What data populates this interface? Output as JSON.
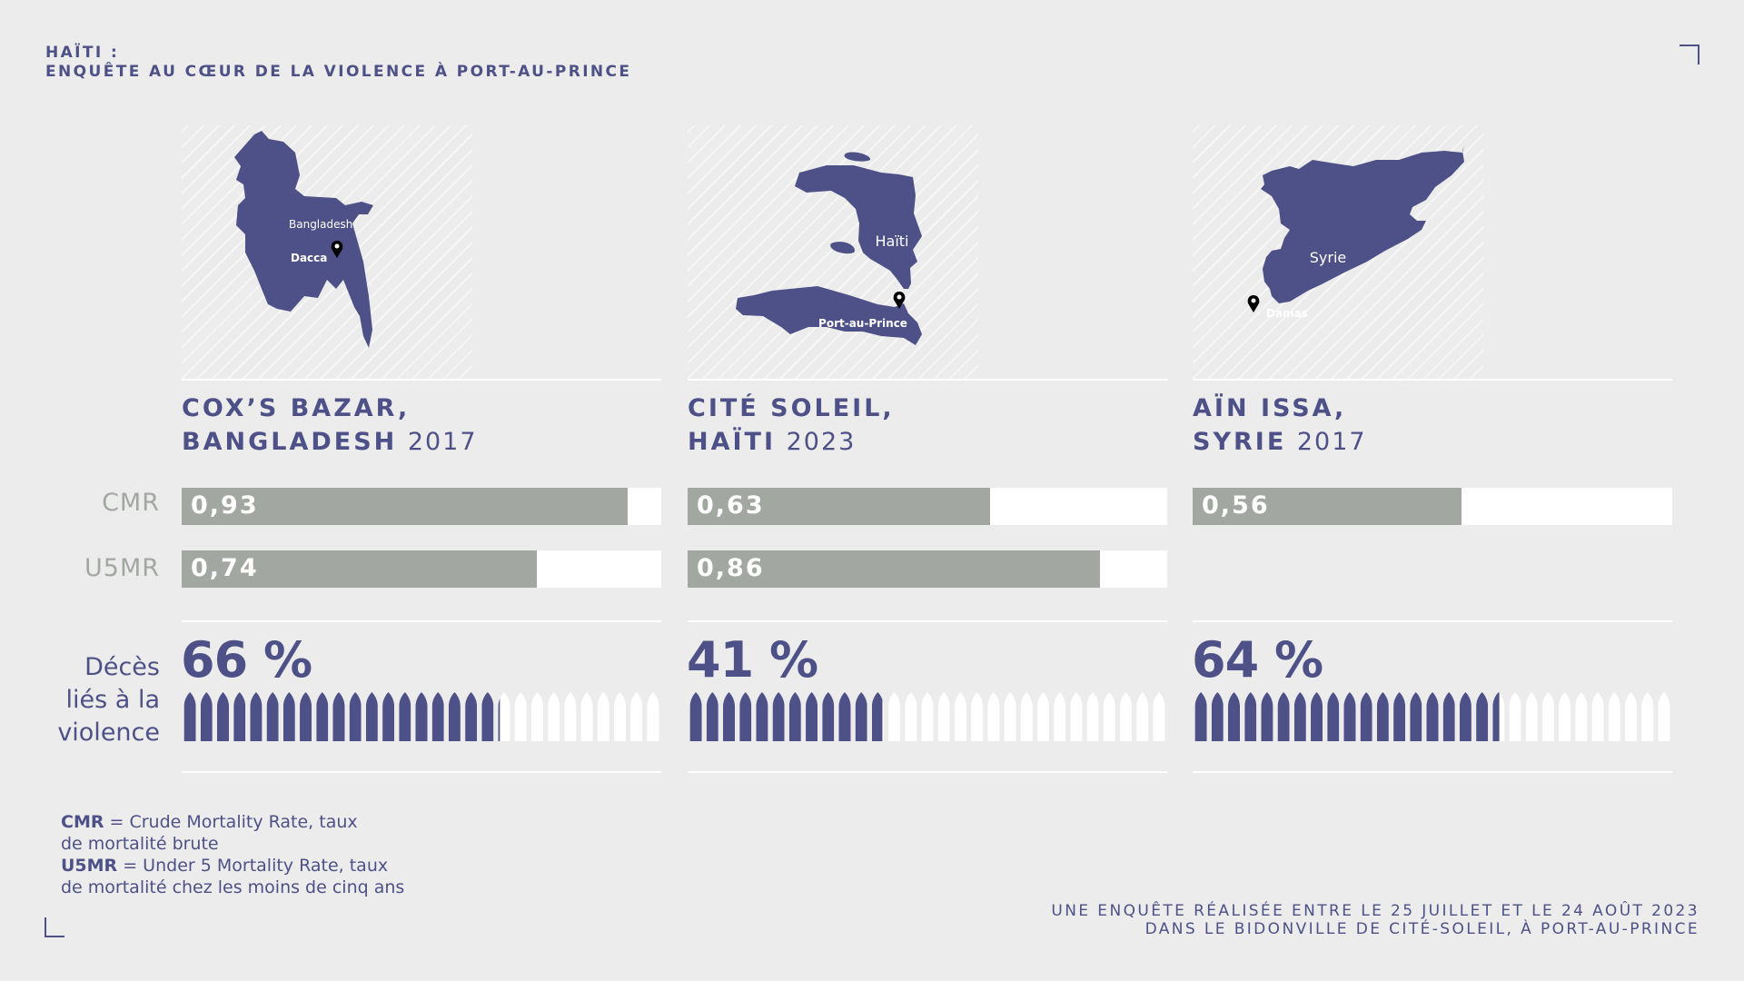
{
  "header": {
    "line1": "HAÏTI :",
    "line2": "ENQUÊTE AU CŒUR DE LA VIOLENCE À PORT-AU-PRINCE"
  },
  "row_labels": {
    "cmr": "CMR",
    "u5mr": "U5MR",
    "deces": [
      "Décès",
      "liés à la",
      "violence"
    ]
  },
  "columns": [
    {
      "line1": "COX’S BAZAR,",
      "line2_name": "BANGLADESH",
      "year": "2017",
      "country_label": "Bangladesh",
      "city_label": "Dacca"
    },
    {
      "line1": "CITÉ SOLEIL,",
      "line2_name": "HAÏTI",
      "year": "2023",
      "country_label": "Haïti",
      "city_label": "Port-au-Prince"
    },
    {
      "line1": "AÏN ISSA,",
      "line2_name": "SYRIE",
      "year": "2017",
      "country_label": "Syrie",
      "city_label": "Damas"
    }
  ],
  "legend": {
    "cmr_abbr": "CMR",
    "cmr_def": " = Crude Mortality Rate, taux",
    "cmr_def2": "de mortalité brute",
    "u5mr_abbr": "U5MR",
    "u5mr_def": " =  Under 5 Mortality Rate, taux",
    "u5mr_def2": "de mortalité chez les moins de cinq ans"
  },
  "footer": {
    "line1": "UNE ENQUÊTE RÉALISÉE ENTRE LE 25 JUILLET ET LE 24 AOÛT 2023",
    "line2": "DANS LE BIDONVILLE DE CITÉ-SOLEIL, À PORT-AU-PRINCE"
  },
  "colors": {
    "primary": "#4d5187",
    "bar": "#a2a8a1",
    "track": "#ffffff",
    "background": "#ececec"
  },
  "chart_data": {
    "type": "bar",
    "categories": [
      "COX’S BAZAR, BANGLADESH 2017",
      "CITÉ SOLEIL, HAÏTI 2023",
      "AÏN ISSA, SYRIE 2017"
    ],
    "series": [
      {
        "name": "CMR",
        "values": [
          0.93,
          0.63,
          0.56
        ],
        "labels": [
          "0,93",
          "0,63",
          "0,56"
        ]
      },
      {
        "name": "U5MR",
        "values": [
          0.74,
          0.86,
          null
        ],
        "labels": [
          "0,74",
          "0,86",
          ""
        ]
      }
    ],
    "xlim": [
      0,
      1
    ],
    "violent_deaths_pct": {
      "values": [
        66,
        41,
        64
      ],
      "labels": [
        "66 %",
        "41 %",
        "64 %"
      ]
    },
    "bullet_count": 29
  }
}
